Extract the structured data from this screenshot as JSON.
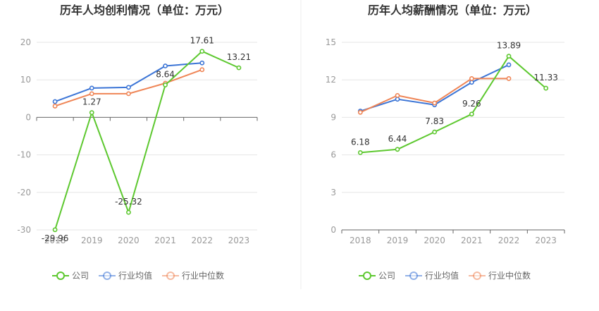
{
  "chart_data": [
    {
      "type": "line",
      "title": "历年人均创利情况（单位：万元）",
      "categories": [
        "2018",
        "2019",
        "2020",
        "2021",
        "2022",
        "2023"
      ],
      "ylim": [
        -30,
        20
      ],
      "yticks": [
        "20",
        "10",
        "0",
        "-10",
        "-20",
        "-30"
      ],
      "grid": true,
      "legend": "bottom",
      "series": [
        {
          "name": "公司",
          "color": "#5dc82f",
          "values": [
            -29.96,
            1.27,
            -25.32,
            8.64,
            17.61,
            13.21
          ],
          "labels": [
            "-29.96",
            "1.27",
            "-25.32",
            "8.64",
            "17.61",
            "13.21"
          ]
        },
        {
          "name": "行业均值",
          "color": "#3c75d6",
          "values": [
            4.2,
            7.8,
            8.0,
            13.7,
            14.5,
            null
          ]
        },
        {
          "name": "行业中位数",
          "color": "#ef8556",
          "values": [
            3.0,
            6.3,
            6.3,
            9.1,
            12.7,
            null
          ]
        }
      ]
    },
    {
      "type": "line",
      "title": "历年人均薪酬情况（单位：万元）",
      "categories": [
        "2018",
        "2019",
        "2020",
        "2021",
        "2022",
        "2023"
      ],
      "ylim": [
        0,
        15
      ],
      "yticks": [
        "15",
        "12",
        "9",
        "6",
        "3",
        "0"
      ],
      "grid": true,
      "legend": "bottom",
      "series": [
        {
          "name": "公司",
          "color": "#5dc82f",
          "values": [
            6.18,
            6.44,
            7.83,
            9.26,
            13.89,
            11.33
          ],
          "labels": [
            "6.18",
            "6.44",
            "7.83",
            "9.26",
            "13.89",
            "11.33"
          ]
        },
        {
          "name": "行业均值",
          "color": "#3c75d6",
          "values": [
            9.5,
            10.45,
            10.0,
            11.8,
            13.2,
            null
          ]
        },
        {
          "name": "行业中位数",
          "color": "#ef8556",
          "values": [
            9.4,
            10.75,
            10.15,
            12.1,
            12.1,
            null
          ]
        }
      ]
    }
  ]
}
